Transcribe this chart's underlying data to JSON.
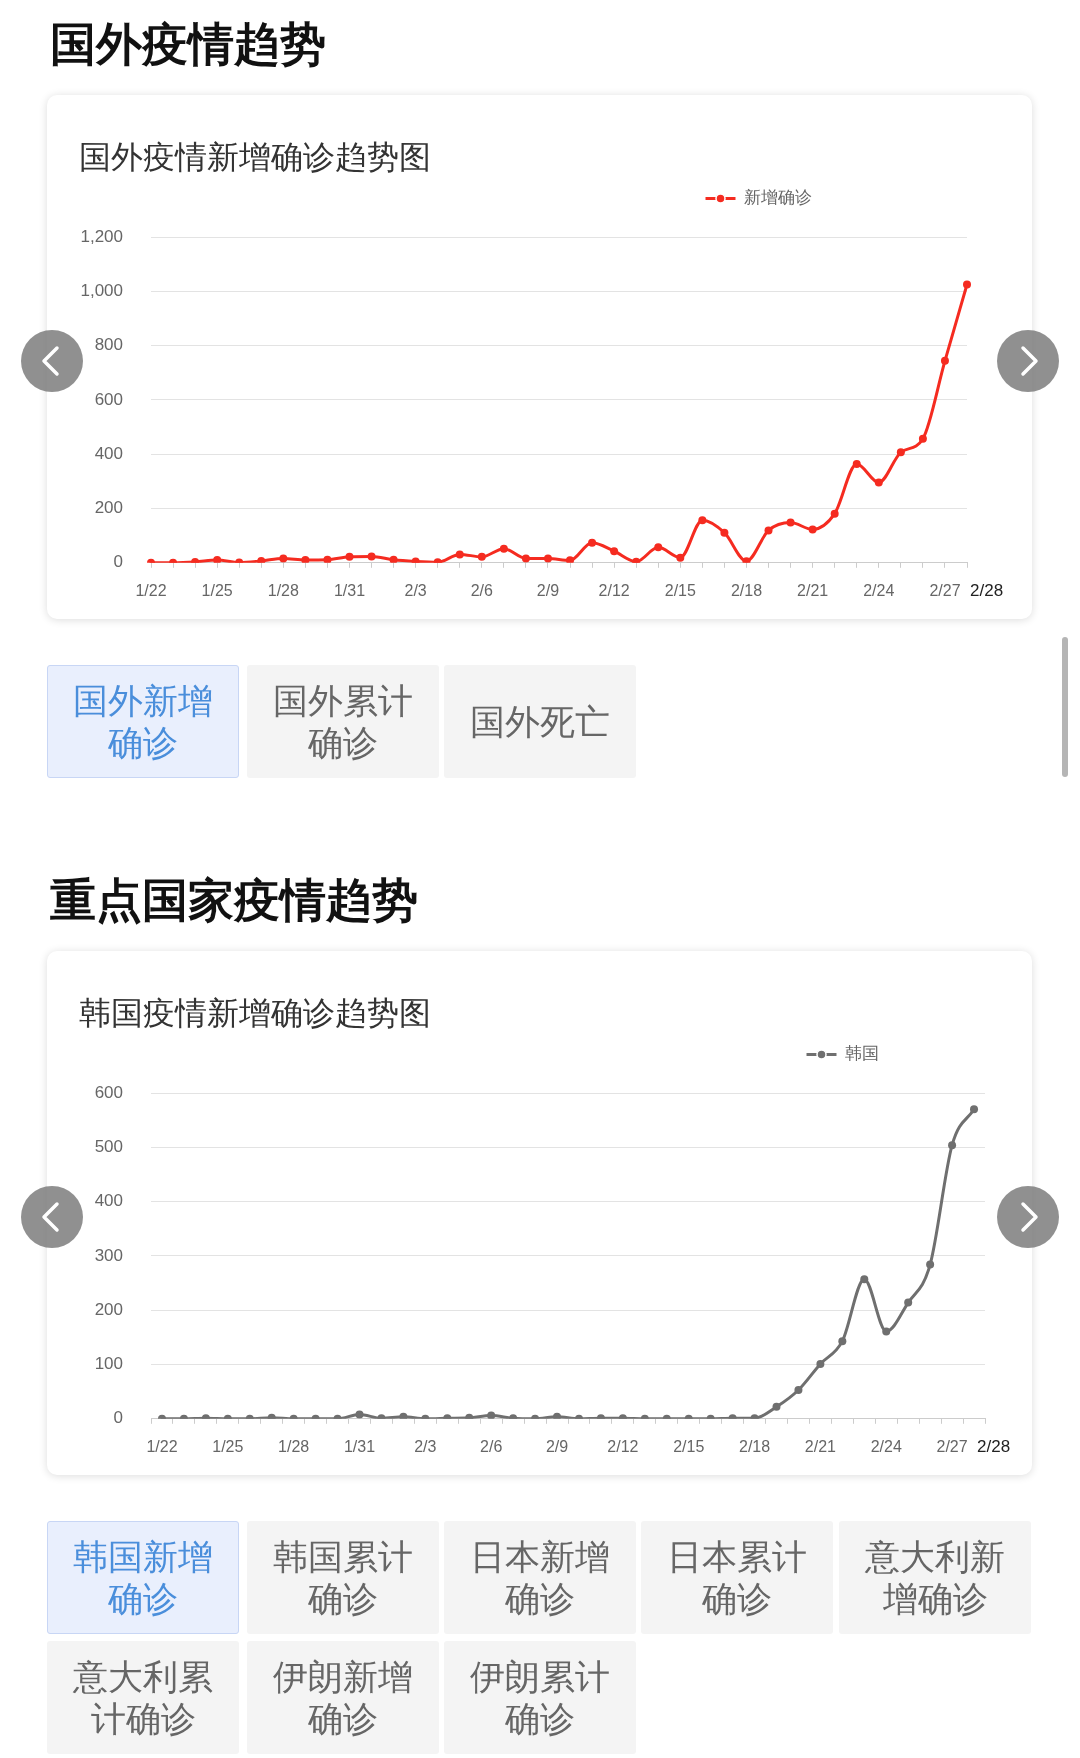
{
  "chart_data": [
    {
      "type": "line",
      "title": "国外疫情趋势",
      "subtitle": "国外疫情新增确诊趋势图",
      "categories": [
        "1/22",
        null,
        null,
        "1/25",
        null,
        null,
        "1/28",
        null,
        null,
        "1/31",
        null,
        null,
        "2/3",
        null,
        null,
        "2/6",
        null,
        null,
        "2/9",
        null,
        null,
        "2/12",
        null,
        null,
        "2/15",
        null,
        null,
        "2/18",
        null,
        null,
        "2/21",
        null,
        null,
        "2/24",
        null,
        null,
        "2/27",
        null
      ],
      "series": [
        {
          "name": "新增确诊",
          "color": "#f52b20",
          "values": [
            0,
            0,
            3,
            10,
            1,
            7,
            16,
            10,
            11,
            22,
            23,
            11,
            5,
            2,
            31,
            22,
            52,
            16,
            16,
            9,
            74,
            43,
            4,
            57,
            19,
            157,
            111,
            6,
            119,
            148,
            123,
            181,
            364,
            296,
            407,
            457,
            744,
            1025
          ]
        }
      ],
      "ylim": [
        0,
        1200
      ],
      "yticks": [
        0,
        200,
        400,
        600,
        800,
        {
          "value": 1000,
          "label": "1,000"
        },
        {
          "value": 1200,
          "label": "1,200"
        }
      ],
      "grid": "y",
      "legend": "top right",
      "marker": "circle",
      "annotations": [
        "2/28",
        "国外新增确诊",
        "国外累计确诊",
        "国外死亡"
      ]
    },
    {
      "type": "line",
      "title": "重点国家疫情趋势",
      "subtitle": "韩国疫情新增确诊趋势图",
      "categories": [
        "1/22",
        null,
        null,
        "1/25",
        null,
        null,
        "1/28",
        null,
        null,
        "1/31",
        null,
        null,
        "2/3",
        null,
        null,
        "2/6",
        null,
        null,
        "2/9",
        null,
        null,
        "2/12",
        null,
        null,
        "2/15",
        null,
        null,
        "2/18",
        null,
        null,
        "2/21",
        null,
        null,
        "2/24",
        null,
        null,
        "2/27",
        null
      ],
      "series": [
        {
          "name": "韩国",
          "color": "#6f6f6f",
          "values": [
            0,
            0,
            1,
            0,
            0,
            2,
            0,
            0,
            0,
            8,
            1,
            4,
            0,
            1,
            2,
            6,
            1,
            0,
            4,
            0,
            1,
            1,
            0,
            0,
            0,
            0,
            1,
            1,
            22,
            53,
            101,
            143,
            257,
            161,
            214,
            284,
            504,
            570
          ]
        }
      ],
      "ylim": [
        0,
        600
      ],
      "yticks": [
        0,
        100,
        200,
        300,
        400,
        500,
        600
      ],
      "grid": "y",
      "legend": "top right",
      "marker": "circle",
      "annotations": [
        "2/28",
        "韩国新增确诊",
        "韩国累计确诊",
        "日本新增确诊",
        "日本累计确诊",
        "意大利新增确诊",
        "意大利累计确诊",
        "伊朗新增确诊",
        "伊朗累计确诊"
      ]
    }
  ]
}
